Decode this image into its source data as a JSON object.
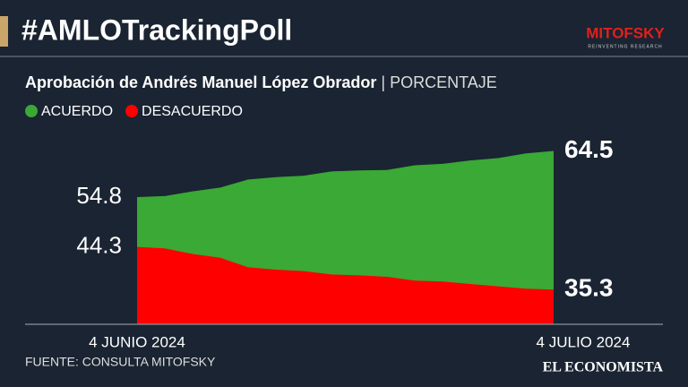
{
  "header": {
    "title": "#AMLOTrackingPoll",
    "logo": "MITOFSKY",
    "logo_tagline": "REINVENTING RESEARCH"
  },
  "chart_data": {
    "type": "area",
    "title": "Aprobación de Andrés Manuel López Obrador",
    "subtitle": "PORCENTAJE",
    "categories": [
      "4 JUNIO 2024",
      null,
      null,
      null,
      null,
      null,
      null,
      null,
      null,
      null,
      null,
      null,
      null,
      null,
      null,
      "4 JULIO 2024"
    ],
    "series": [
      {
        "name": "ACUERDO",
        "color": "#3aa935",
        "values": [
          54.8,
          55.0,
          56.0,
          56.8,
          58.5,
          59.0,
          59.3,
          60.2,
          60.4,
          60.5,
          61.5,
          61.8,
          62.5,
          63.0,
          64.0,
          64.5
        ]
      },
      {
        "name": "DESACUERDO",
        "color": "#ff0000",
        "values": [
          44.3,
          44.0,
          42.8,
          42.0,
          40.0,
          39.5,
          39.2,
          38.5,
          38.3,
          38.0,
          37.2,
          37.0,
          36.5,
          36.0,
          35.5,
          35.3
        ]
      }
    ],
    "ylim": [
      28,
      66
    ],
    "source": "FUENTE: CONSULTA MITOFSKY",
    "publisher": "EL ECONOMISTA"
  }
}
